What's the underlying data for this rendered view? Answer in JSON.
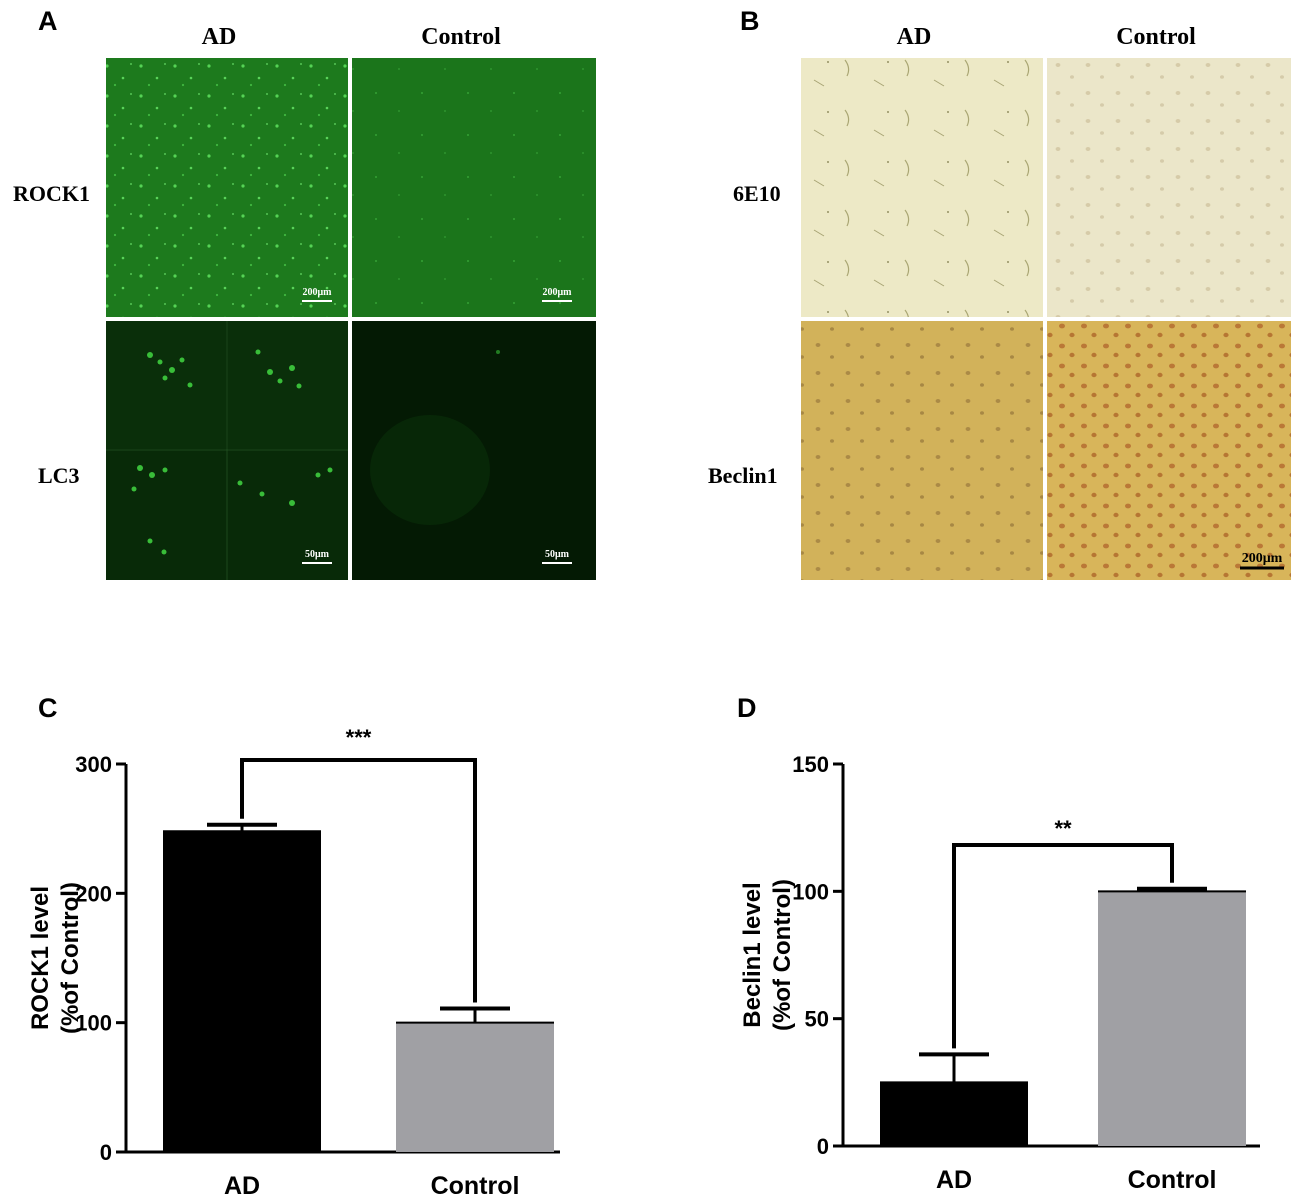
{
  "panels": {
    "A": {
      "letter": "A",
      "columns": [
        "AD",
        "Control"
      ],
      "rows": [
        "ROCK1",
        "LC3"
      ],
      "scale_bars": [
        "200μm",
        "200μm",
        "50μm",
        "50μm"
      ]
    },
    "B": {
      "letter": "B",
      "columns": [
        "AD",
        "Control"
      ],
      "rows": [
        "6E10",
        "Beclin1"
      ],
      "scale_bar": "200μm"
    },
    "C": {
      "letter": "C"
    },
    "D": {
      "letter": "D"
    }
  },
  "colors": {
    "ad_bar": "#000000",
    "control_bar": "#a0a0a4",
    "fluorescence_green": "#1f7a1f",
    "ihc_light": "#ece8c8",
    "ihc_dark": "#cba64a"
  },
  "chart_data": [
    {
      "panel": "C",
      "type": "bar",
      "categories": [
        "AD",
        "Control"
      ],
      "values": [
        248,
        100
      ],
      "errors": [
        5,
        11
      ],
      "ylabel": "ROCK1 level\n(%of Control)",
      "ylabel_lines": [
        "ROCK1 level",
        "(%of Control)"
      ],
      "ylim": [
        0,
        300
      ],
      "yticks": [
        "0",
        "100",
        "200",
        "300"
      ],
      "significance": "***"
    },
    {
      "panel": "D",
      "type": "bar",
      "categories": [
        "AD",
        "Control"
      ],
      "values": [
        25,
        100
      ],
      "errors": [
        11,
        1
      ],
      "ylabel": "Beclin1 level\n(%of Control)",
      "ylabel_lines": [
        "Beclin1 level",
        "(%of Control)"
      ],
      "ylim": [
        0,
        150
      ],
      "yticks": [
        "0",
        "50",
        "100",
        "150"
      ],
      "significance": "**"
    }
  ]
}
